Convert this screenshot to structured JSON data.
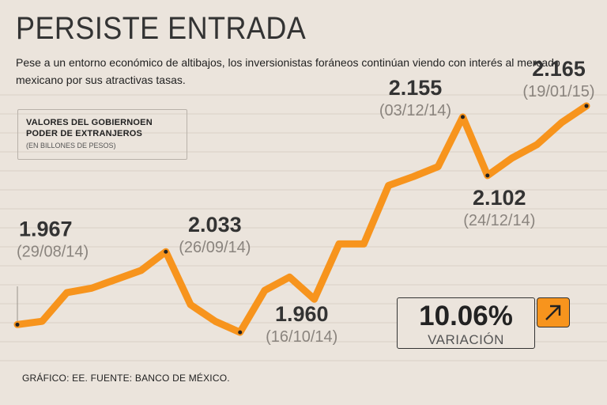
{
  "header": {
    "title": "PERSISTE ENTRADA",
    "subtitle": "Pese a un entorno económico de altibajos, los inversionistas foráneos continúan viendo con interés al mercado mexicano por sus atractivas tasas."
  },
  "legend": {
    "title_line1": "VALORES DEL GOBIERNOEN",
    "title_line2": "PODER DE EXTRANJEROS",
    "subtitle": "(EN BILLONES DE PESOS)"
  },
  "variation": {
    "value": "10.06%",
    "label": "VARIACIÓN",
    "direction": "up-right-arrow-icon"
  },
  "source": "GRÁFICO: EE. FUENTE: BANCO DE MÉXICO.",
  "colors": {
    "line": "#f7941d",
    "background": "#ebe4dc",
    "grid": "#d8cfc6"
  },
  "chart_data": {
    "type": "line",
    "title": "Valores del Gobierno en poder de extranjeros",
    "ylabel": "Billones de pesos",
    "ylim": [
      1.93,
      2.18
    ],
    "grid": true,
    "series": [
      {
        "name": "Valores del Gobierno en poder de extranjeros",
        "values": [
          1.967,
          1.97,
          1.996,
          2.0,
          2.008,
          2.016,
          2.033,
          1.985,
          1.97,
          1.96,
          1.998,
          2.01,
          1.99,
          2.04,
          2.04,
          2.093,
          2.101,
          2.11,
          2.155,
          2.102,
          2.118,
          2.13,
          2.15,
          2.165
        ]
      }
    ],
    "annotations": [
      {
        "index": 0,
        "value_label": "1.967",
        "date": "(29/08/14)"
      },
      {
        "index": 6,
        "value_label": "2.033",
        "date": "(26/09/14)"
      },
      {
        "index": 9,
        "value_label": "1.960",
        "date": "(16/10/14)"
      },
      {
        "index": 18,
        "value_label": "2.155",
        "date": "(03/12/14)"
      },
      {
        "index": 19,
        "value_label": "2.102",
        "date": "(24/12/14)"
      },
      {
        "index": 23,
        "value_label": "2.165",
        "date": "(19/01/15)"
      }
    ]
  }
}
